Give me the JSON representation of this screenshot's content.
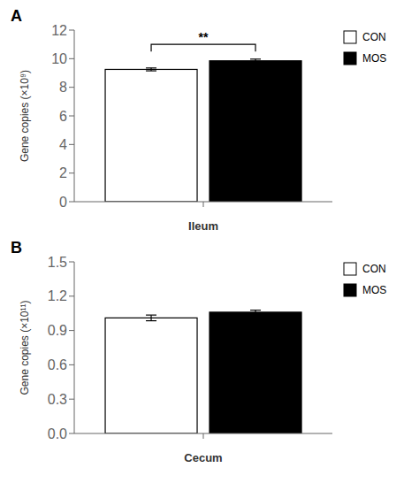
{
  "chart_data": [
    {
      "type": "bar",
      "title": "A",
      "x_label": "Ileum",
      "y_label": "Gene copies (×10⁹)",
      "categories": [
        null
      ],
      "series": [
        {
          "name": "CON",
          "color": "#ffffff",
          "values": [
            9.25
          ],
          "errors": [
            0.1
          ]
        },
        {
          "name": "MOS",
          "color": "#000000",
          "values": [
            9.85
          ],
          "errors": [
            0.12
          ]
        }
      ],
      "ylim": [
        0,
        12
      ],
      "yticks": [
        0,
        2,
        4,
        6,
        8,
        10,
        12
      ],
      "annotations": [
        {
          "text": "**",
          "y": 11.0
        }
      ],
      "grid": false,
      "legend": "right"
    },
    {
      "type": "bar",
      "title": "B",
      "x_label": "Cecum",
      "y_label": "Gene copies (×10¹¹)",
      "categories": [
        null
      ],
      "series": [
        {
          "name": "CON",
          "color": "#ffffff",
          "values": [
            1.01
          ],
          "errors": [
            0.025
          ]
        },
        {
          "name": "MOS",
          "color": "#000000",
          "values": [
            1.06
          ],
          "errors": [
            0.018
          ]
        }
      ],
      "ylim": [
        0,
        1.5
      ],
      "yticks": [
        {
          "value": 0,
          "label": "0.0"
        },
        0.3,
        0.6,
        0.9,
        1.2,
        1.5
      ],
      "grid": false,
      "legend": "right"
    }
  ]
}
